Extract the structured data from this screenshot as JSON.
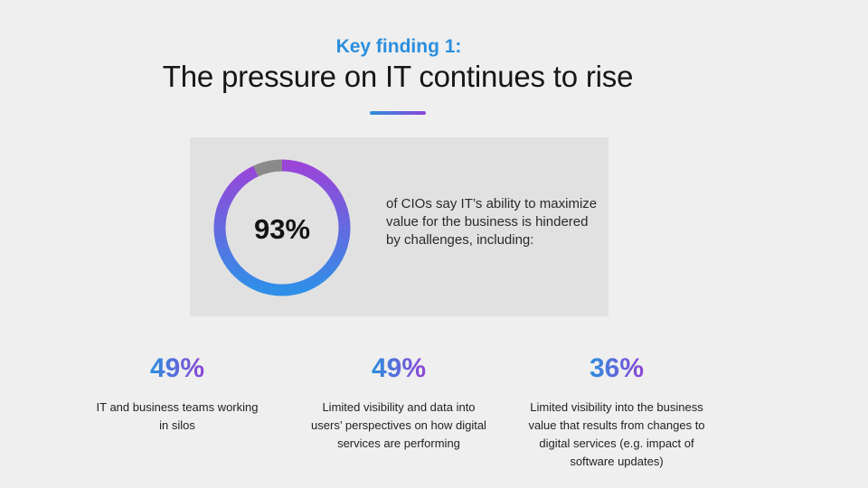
{
  "kicker": "Key finding 1:",
  "headline": "The pressure on IT continues to rise",
  "colors": {
    "accent_blue": "#2b8fde",
    "accent_purple": "#8e45d6",
    "track_gray": "#8a8a8a"
  },
  "chart_data": {
    "type": "donut",
    "value": 93,
    "max": 100,
    "center_label": "93%",
    "description": "of CIOs say IT’s ability to maximize value for the business is hindered by challenges, including:"
  },
  "stats": [
    {
      "value": "49%",
      "text": "IT and business teams working in silos"
    },
    {
      "value": "49%",
      "text": "Limited visibility and data into users’ perspectives on how digital services are performing"
    },
    {
      "value": "36%",
      "text": "Limited visibility into the business value that results from changes to digital services (e.g. impact of software updates)"
    }
  ]
}
